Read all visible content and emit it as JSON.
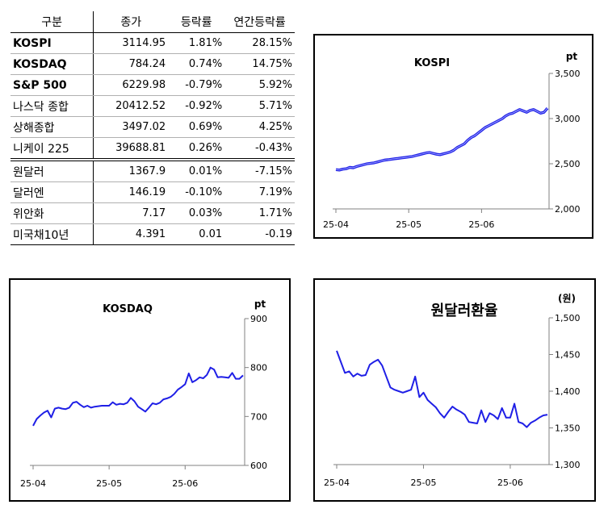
{
  "table": {
    "headers": [
      "구분",
      "종가",
      "등락률",
      "연간등락률"
    ],
    "rows": [
      {
        "name": "KOSPI",
        "close": "3114.95",
        "change": "1.81%",
        "ytd": "28.15%",
        "bold": true
      },
      {
        "name": "KOSDAQ",
        "close": "784.24",
        "change": "0.74%",
        "ytd": "14.75%",
        "bold": true
      },
      {
        "name": "S&P 500",
        "close": "6229.98",
        "change": "-0.79%",
        "ytd": "5.92%",
        "bold": true
      },
      {
        "name": "나스닥 종합",
        "close": "20412.52",
        "change": "-0.92%",
        "ytd": "5.71%",
        "bold": false
      },
      {
        "name": "상해종합",
        "close": "3497.02",
        "change": "0.69%",
        "ytd": "4.25%",
        "bold": false
      },
      {
        "name": "니케이 225",
        "close": "39688.81",
        "change": "0.26%",
        "ytd": "-0.43%",
        "bold": false
      },
      {
        "name": "원달러",
        "close": "1367.9",
        "change": "0.01%",
        "ytd": "-7.15%",
        "bold": false
      },
      {
        "name": "달러엔",
        "close": "146.19",
        "change": "-0.10%",
        "ytd": "7.19%",
        "bold": false
      },
      {
        "name": "위안화",
        "close": "7.17",
        "change": "0.03%",
        "ytd": "1.71%",
        "bold": false
      },
      {
        "name": "미국채10년",
        "close": "4.391",
        "change": "0.01",
        "ytd": "-0.19",
        "bold": false
      }
    ]
  },
  "chart_data": [
    {
      "id": "kospi",
      "type": "line",
      "title": "KOSPI",
      "unit": "pt",
      "color": "#1f1fe6",
      "ylim": [
        2000,
        3500
      ],
      "yticks": [
        "2,000",
        "2,500",
        "3,000",
        "3,500"
      ],
      "xticks": [
        "25-04",
        "25-05",
        "25-06"
      ],
      "xtick_index": [
        0,
        21,
        42
      ],
      "y": [
        2435,
        2430,
        2440,
        2445,
        2460,
        2455,
        2470,
        2480,
        2490,
        2500,
        2505,
        2510,
        2520,
        2530,
        2540,
        2545,
        2550,
        2555,
        2560,
        2565,
        2570,
        2575,
        2580,
        2590,
        2600,
        2610,
        2620,
        2625,
        2615,
        2605,
        2600,
        2610,
        2620,
        2630,
        2650,
        2680,
        2700,
        2720,
        2760,
        2790,
        2810,
        2840,
        2870,
        2900,
        2920,
        2940,
        2960,
        2980,
        3000,
        3030,
        3050,
        3060,
        3080,
        3100,
        3085,
        3070,
        3090,
        3100,
        3080,
        3060,
        3070,
        3115
      ]
    },
    {
      "id": "kosdaq",
      "type": "line",
      "title": "KOSDAQ",
      "unit": "pt",
      "color": "#1f1fe6",
      "ylim": [
        600,
        900
      ],
      "yticks": [
        "600",
        "700",
        "800",
        "900"
      ],
      "xticks": [
        "25-04",
        "25-05",
        "25-06"
      ],
      "xtick_index": [
        0,
        21,
        42
      ],
      "y": [
        681,
        695,
        702,
        708,
        712,
        698,
        716,
        718,
        716,
        715,
        718,
        728,
        730,
        724,
        719,
        722,
        718,
        720,
        721,
        722,
        722,
        722,
        729,
        724,
        726,
        725,
        728,
        738,
        731,
        720,
        715,
        710,
        718,
        727,
        725,
        728,
        735,
        737,
        740,
        746,
        755,
        760,
        766,
        788,
        770,
        774,
        780,
        778,
        785,
        800,
        796,
        780,
        781,
        780,
        779,
        789,
        777,
        777,
        784
      ]
    },
    {
      "id": "usdkrw",
      "type": "line",
      "title": "원달러환율",
      "unit": "(원)",
      "color": "#1f1fe6",
      "ylim": [
        1300,
        1500
      ],
      "yticks": [
        "1,300",
        "1,350",
        "1,400",
        "1,450",
        "1,500"
      ],
      "xticks": [
        "25-04",
        "25-05",
        "25-06"
      ],
      "xtick_index": [
        0,
        21,
        42
      ],
      "y": [
        1455,
        1440,
        1425,
        1427,
        1420,
        1424,
        1421,
        1422,
        1436,
        1440,
        1443,
        1435,
        1420,
        1405,
        1402,
        1400,
        1398,
        1400,
        1402,
        1420,
        1392,
        1398,
        1388,
        1383,
        1378,
        1370,
        1364,
        1372,
        1379,
        1375,
        1372,
        1368,
        1358,
        1357,
        1356,
        1374,
        1358,
        1370,
        1367,
        1362,
        1377,
        1364,
        1364,
        1383,
        1358,
        1356,
        1351,
        1357,
        1360,
        1364,
        1367,
        1368
      ]
    }
  ]
}
